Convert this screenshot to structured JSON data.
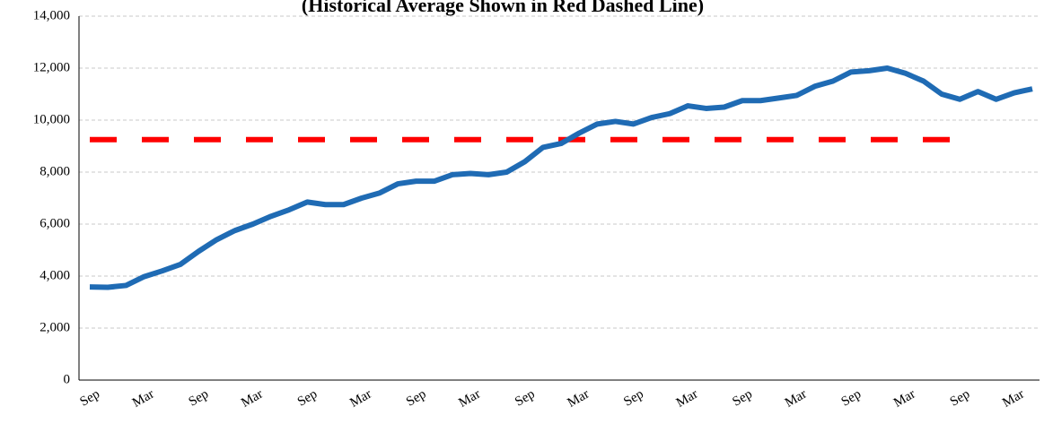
{
  "chart_data": {
    "type": "line",
    "subtitle": "(Historical Average Shown in Red Dashed Line)",
    "categories": [
      "Sep",
      null,
      null,
      "Mar",
      null,
      null,
      "Sep",
      null,
      null,
      "Mar",
      null,
      null,
      "Sep",
      null,
      null,
      "Mar",
      null,
      null,
      "Sep",
      null,
      null,
      "Mar",
      null,
      null,
      "Sep",
      null,
      null,
      "Mar",
      null,
      null,
      "Sep",
      null,
      null,
      "Mar",
      null,
      null,
      "Sep",
      null,
      null,
      "Mar",
      null,
      null,
      "Sep",
      null,
      null,
      "Mar",
      null,
      null,
      "Sep",
      null,
      null,
      "Mar",
      null
    ],
    "series": [
      {
        "color": "#1f6bb4",
        "values": [
          3580,
          3570,
          3640,
          3980,
          4200,
          4450,
          4950,
          5400,
          5750,
          6000,
          6300,
          6550,
          6850,
          6750,
          6750,
          7000,
          7200,
          7550,
          7650,
          7650,
          7900,
          7950,
          7900,
          8000,
          8400,
          8950,
          9100,
          9500,
          9850,
          9950,
          9850,
          10100,
          10250,
          10550,
          10450,
          10500,
          10750,
          10750,
          10850,
          10950,
          11300,
          11500,
          11850,
          11900,
          12000,
          11800,
          11500,
          11000,
          10800,
          11100,
          10800,
          11050,
          11200
        ]
      }
    ],
    "average": {
      "value": 9250,
      "color": "#ff0000"
    },
    "ylim": [
      0,
      14000
    ],
    "yticks": [
      {
        "value": 0,
        "label": "0"
      },
      {
        "value": 2000,
        "label": "2,000"
      },
      {
        "value": 4000,
        "label": "4,000"
      },
      {
        "value": 6000,
        "label": "6,000"
      },
      {
        "value": 8000,
        "label": "8,000"
      },
      {
        "value": 10000,
        "label": "10,000"
      },
      {
        "value": 12000,
        "label": "12,000"
      },
      {
        "value": 14000,
        "label": "14,000"
      }
    ],
    "grid": true
  }
}
